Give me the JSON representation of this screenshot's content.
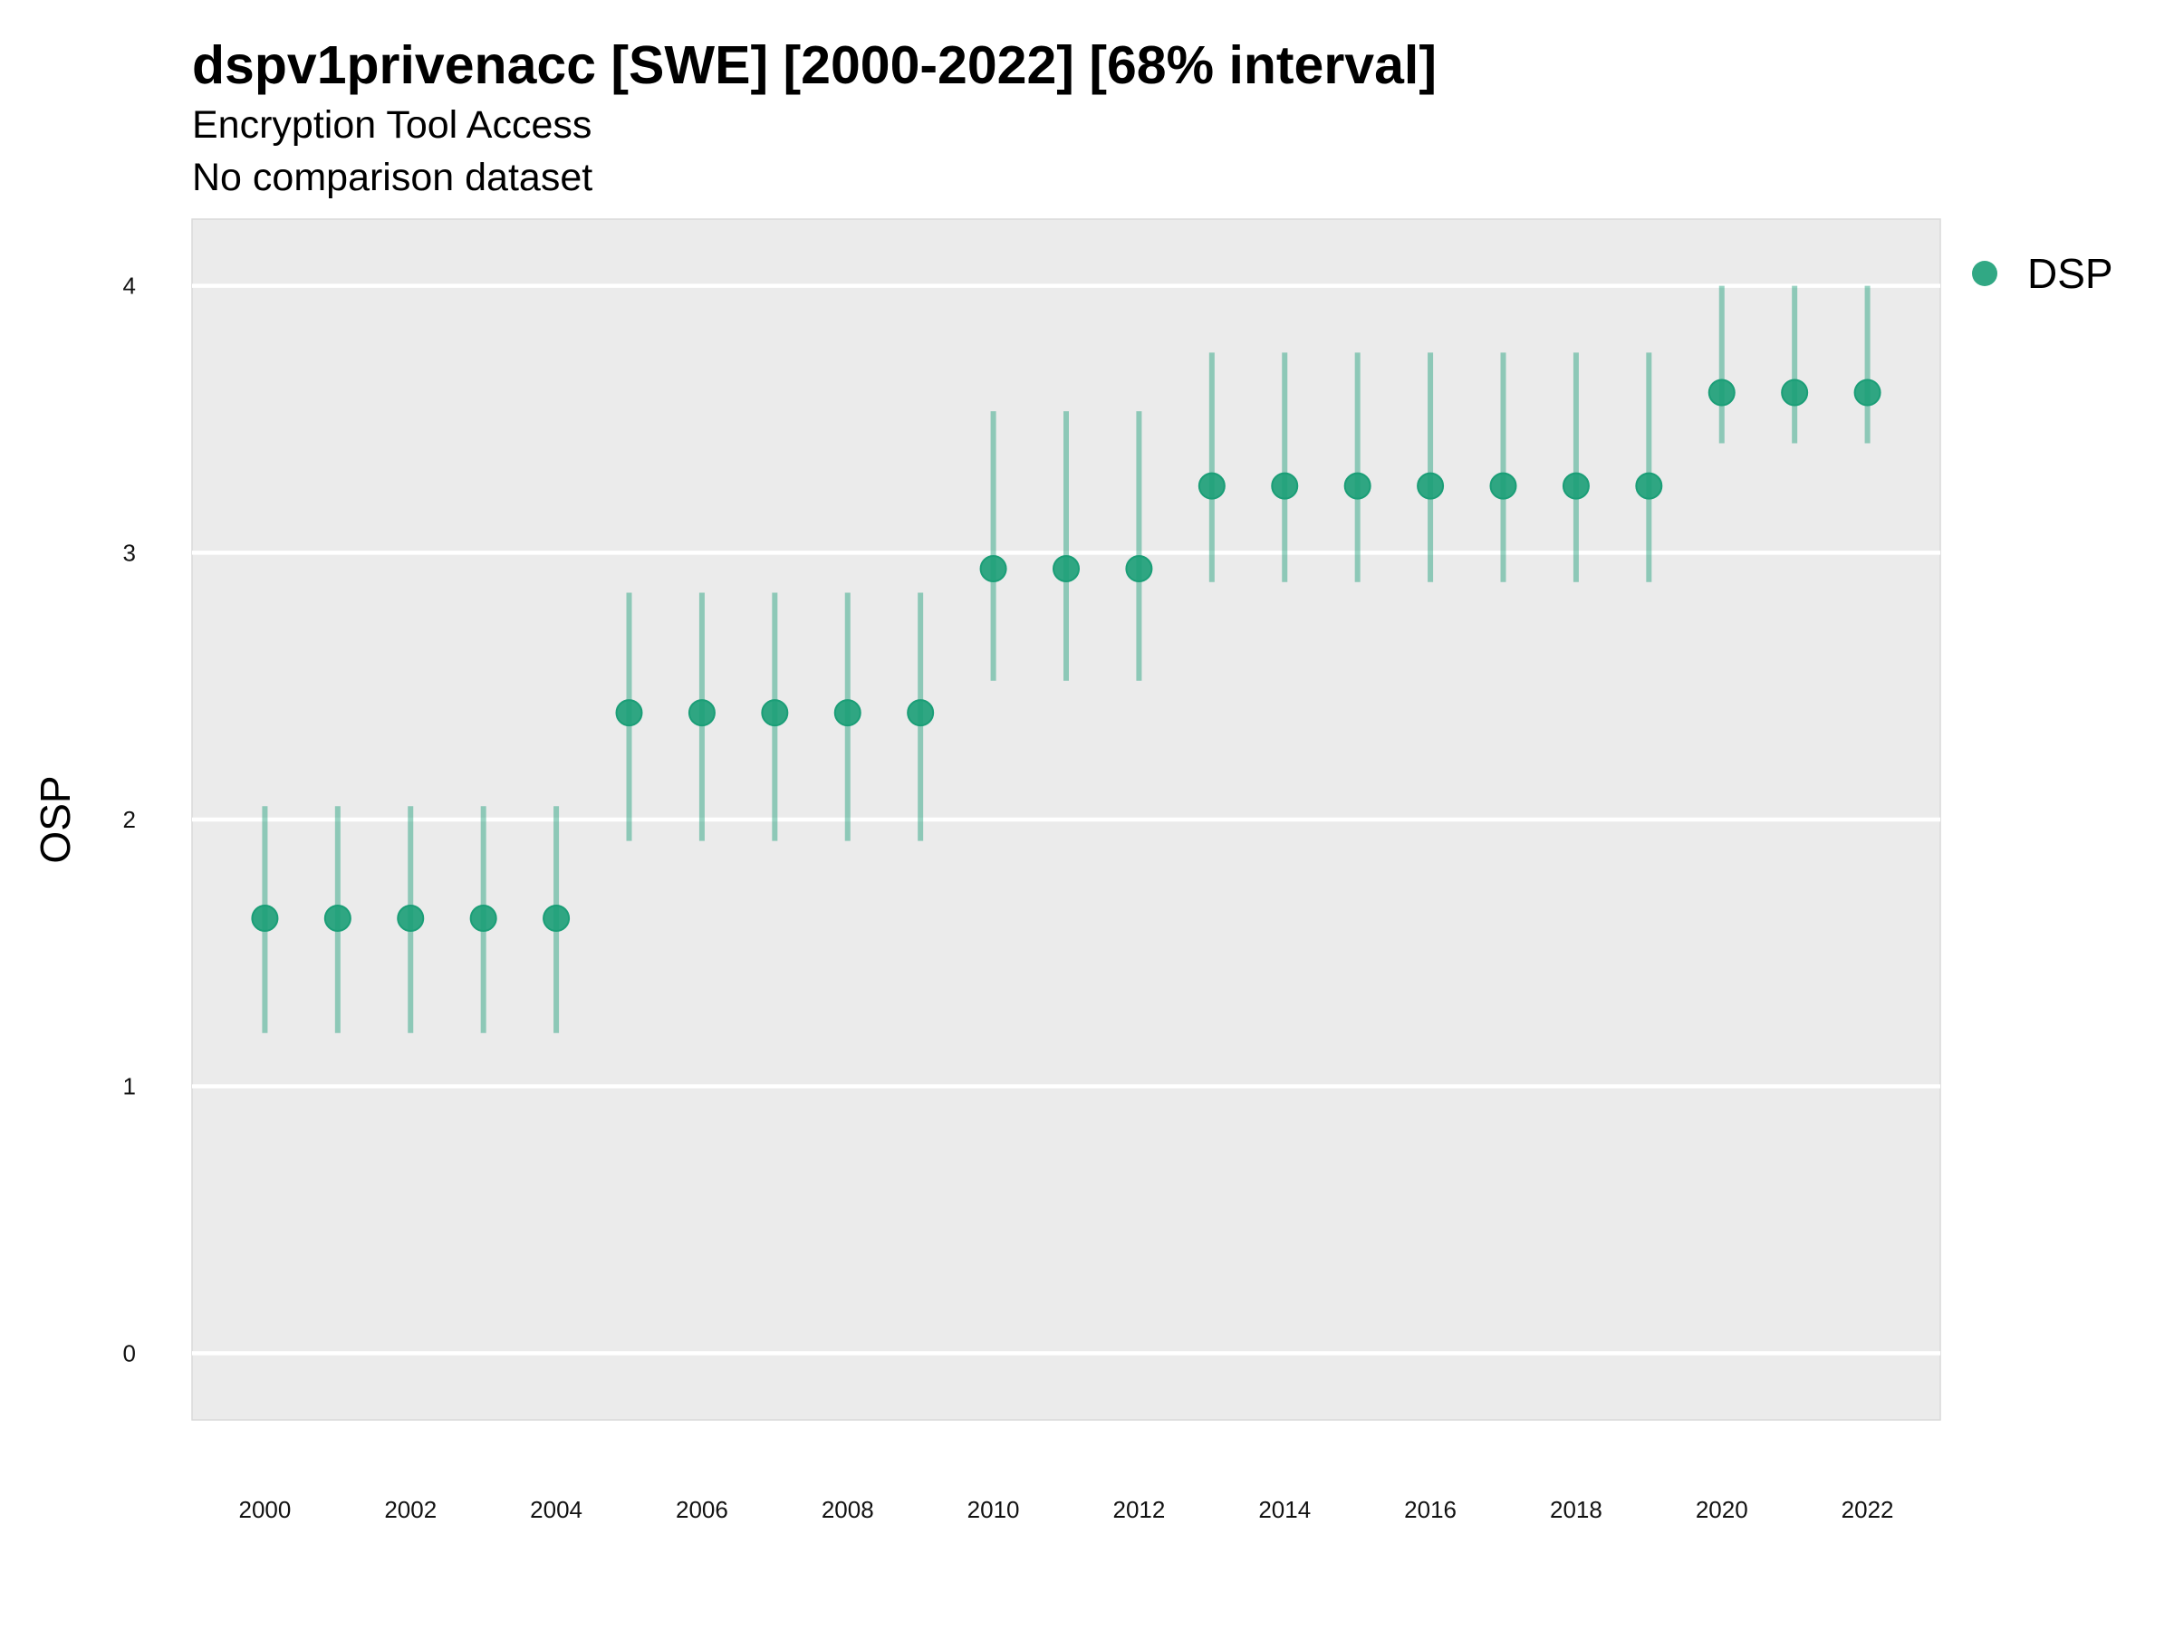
{
  "chart_data": {
    "type": "scatter",
    "title": "dspv1privenacc [SWE] [2000-2022] [68% interval]",
    "subtitle": "Encryption Tool Access",
    "subtitle2": "No comparison dataset",
    "xlabel": "",
    "ylabel": "OSP",
    "xlim": [
      1999,
      2023
    ],
    "ylim": [
      -0.25,
      4.25
    ],
    "x_ticks": [
      "2000",
      "2002",
      "2004",
      "2006",
      "2008",
      "2010",
      "2012",
      "2014",
      "2016",
      "2018",
      "2020",
      "2022"
    ],
    "y_ticks": [
      "0",
      "1",
      "2",
      "3",
      "4"
    ],
    "grid": true,
    "legend_position": "right-top",
    "series": [
      {
        "name": "DSP",
        "color": "#1b9e77",
        "x": [
          2000,
          2001,
          2002,
          2003,
          2004,
          2005,
          2006,
          2007,
          2008,
          2009,
          2010,
          2011,
          2012,
          2013,
          2014,
          2015,
          2016,
          2017,
          2018,
          2019,
          2020,
          2021,
          2022
        ],
        "y": [
          1.63,
          1.63,
          1.63,
          1.63,
          1.63,
          2.4,
          2.4,
          2.4,
          2.4,
          2.4,
          2.94,
          2.94,
          2.94,
          3.25,
          3.25,
          3.25,
          3.25,
          3.25,
          3.25,
          3.25,
          3.6,
          3.6,
          3.6
        ],
        "lower": [
          1.2,
          1.2,
          1.2,
          1.2,
          1.2,
          1.92,
          1.92,
          1.92,
          1.92,
          1.92,
          2.52,
          2.52,
          2.52,
          2.89,
          2.89,
          2.89,
          2.89,
          2.89,
          2.89,
          2.89,
          3.41,
          3.41,
          3.41
        ],
        "upper": [
          2.05,
          2.05,
          2.05,
          2.05,
          2.05,
          2.85,
          2.85,
          2.85,
          2.85,
          2.85,
          3.53,
          3.53,
          3.53,
          3.75,
          3.75,
          3.75,
          3.75,
          3.75,
          3.75,
          3.75,
          4.0,
          4.0,
          4.0
        ]
      }
    ]
  }
}
